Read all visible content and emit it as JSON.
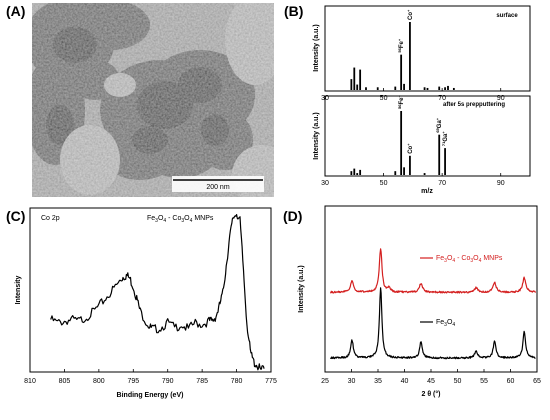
{
  "panels": {
    "A": {
      "label": "(A)",
      "scale_bar": "200 nm"
    },
    "B": {
      "label": "(B)"
    },
    "C": {
      "label": "(C)"
    },
    "D": {
      "label": "(D)"
    }
  },
  "chart_data": [
    {
      "panel": "B-top",
      "type": "bar",
      "annotation": "surface",
      "ylabel": "Intensity (a.u.)",
      "xlim": [
        30,
        100
      ],
      "xticks": [
        30,
        50,
        70,
        90
      ],
      "x": [
        39,
        40,
        41,
        42,
        44,
        48,
        54,
        56,
        57,
        59,
        64,
        65,
        69,
        71,
        72,
        74
      ],
      "values": [
        0.16,
        0.33,
        0.08,
        0.3,
        0.04,
        0.04,
        0.05,
        0.52,
        0.09,
        1.0,
        0.04,
        0.03,
        0.05,
        0.04,
        0.06,
        0.03
      ],
      "peak_labels": [
        {
          "x": 56,
          "text": "56Fe+"
        },
        {
          "x": 59,
          "text": "Co+"
        }
      ]
    },
    {
      "panel": "B-bottom",
      "type": "bar",
      "annotation": "after 5s prepputtering",
      "ylabel": "Intensity (a.u.)",
      "xlabel": "m/z",
      "xlim": [
        30,
        100
      ],
      "xticks": [
        30,
        50,
        70,
        90
      ],
      "x": [
        39,
        40,
        41,
        42,
        54,
        56,
        57,
        59,
        64,
        69,
        71
      ],
      "values": [
        0.06,
        0.1,
        0.03,
        0.08,
        0.06,
        1.0,
        0.12,
        0.3,
        0.03,
        0.63,
        0.42
      ],
      "peak_labels": [
        {
          "x": 56,
          "text": "56Fe+"
        },
        {
          "x": 59,
          "text": "Co+"
        },
        {
          "x": 69,
          "text": "69Ga+"
        },
        {
          "x": 71,
          "text": "71Ga+"
        }
      ]
    },
    {
      "panel": "C",
      "type": "line",
      "annotation_left": "Co 2p",
      "annotation": "Fe3O4 - Co3O4 MNPs",
      "xlabel": "Binding Energy (eV)",
      "ylabel": "Intensity",
      "xlim": [
        810,
        775
      ],
      "xticks": [
        810,
        805,
        800,
        795,
        790,
        785,
        780,
        775
      ],
      "ylim": [
        0,
        1
      ],
      "x": [
        807,
        806,
        805,
        804,
        803,
        802,
        801,
        800,
        799,
        798,
        797,
        796.5,
        796,
        795.5,
        795,
        794.5,
        794,
        793,
        792.5,
        792,
        791,
        790,
        789,
        788,
        787,
        786,
        785,
        784,
        783.5,
        783,
        782.5,
        782,
        781.5,
        781,
        780.5,
        780,
        779.5,
        779,
        778.5,
        778,
        777.5,
        777,
        776.5,
        776
      ],
      "y": [
        0.32,
        0.3,
        0.31,
        0.32,
        0.31,
        0.33,
        0.36,
        0.4,
        0.45,
        0.5,
        0.55,
        0.58,
        0.59,
        0.57,
        0.52,
        0.45,
        0.37,
        0.3,
        0.27,
        0.26,
        0.27,
        0.3,
        0.27,
        0.29,
        0.26,
        0.3,
        0.29,
        0.31,
        0.31,
        0.34,
        0.4,
        0.48,
        0.65,
        0.82,
        0.94,
        0.97,
        0.92,
        0.62,
        0.3,
        0.12,
        0.06,
        0.04,
        0.01,
        0.02
      ]
    },
    {
      "panel": "D",
      "type": "line",
      "xlabel": "2 θ (°)",
      "ylabel": "Intensity (a.u.)",
      "xlim": [
        25,
        65
      ],
      "xticks": [
        25,
        30,
        35,
        40,
        45,
        50,
        55,
        60,
        65
      ],
      "series": [
        {
          "name": "Fe3O4 - Co3O4 MNPs",
          "color": "#d42020",
          "offset": 0.44,
          "peaks": [
            [
              30.1,
              0.08,
              0.35
            ],
            [
              35.5,
              0.3,
              0.3
            ],
            [
              37.1,
              0.03,
              0.3
            ],
            [
              43.1,
              0.06,
              0.35
            ],
            [
              53.5,
              0.03,
              0.35
            ],
            [
              57.0,
              0.07,
              0.35
            ],
            [
              62.6,
              0.1,
              0.35
            ]
          ],
          "baseline": 0.045
        },
        {
          "name": "Fe3O4",
          "color": "#000000",
          "offset": 0.0,
          "peaks": [
            [
              30.1,
              0.12,
              0.3
            ],
            [
              35.5,
              0.48,
              0.28
            ],
            [
              43.1,
              0.11,
              0.3
            ],
            [
              53.5,
              0.05,
              0.3
            ],
            [
              57.0,
              0.12,
              0.3
            ],
            [
              62.6,
              0.18,
              0.3
            ]
          ],
          "baseline": 0.035
        }
      ]
    }
  ]
}
